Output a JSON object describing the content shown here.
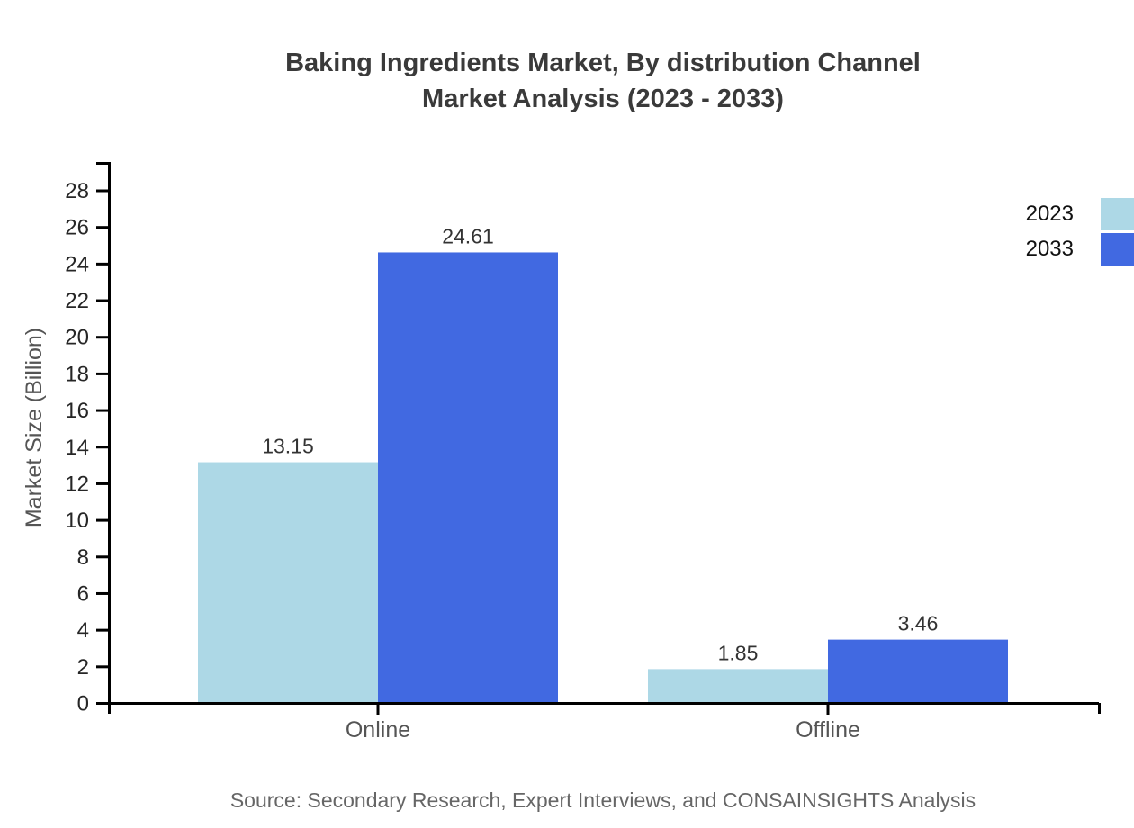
{
  "title": {
    "line1": "Baking Ingredients Market, By distribution Channel",
    "line2": "Market Analysis (2023 - 2033)"
  },
  "chart_data": {
    "type": "bar",
    "categories": [
      "Online",
      "Offline"
    ],
    "series": [
      {
        "name": "2023",
        "color": "#add8e6",
        "values": [
          13.15,
          1.85
        ]
      },
      {
        "name": "2033",
        "color": "#4169e1",
        "values": [
          24.61,
          3.46
        ]
      }
    ],
    "value_labels": [
      [
        "13.15",
        "1.85"
      ],
      [
        "24.61",
        "3.46"
      ]
    ],
    "ylabel": "Market Size (Billion)",
    "ylim": [
      0,
      29.5
    ],
    "ytick_step": 2,
    "ytick_max": 28,
    "grid": false,
    "legend_position": "upper-right"
  },
  "source": {
    "text": "Source: Secondary Research, Expert Interviews, and CONSAINSIGHTS Analysis"
  }
}
